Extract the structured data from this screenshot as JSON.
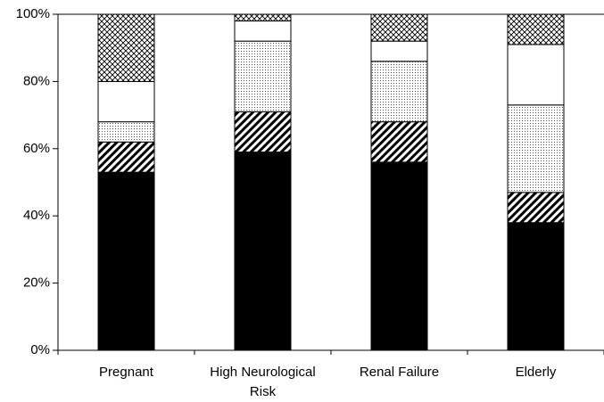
{
  "chart_data": {
    "type": "stacked_bar",
    "categories": [
      "Pregnant",
      "High Neurological Risk",
      "Renal Failure",
      "Elderly"
    ],
    "series": [
      {
        "color": "#000000",
        "pattern": "solid",
        "values": [
          53,
          59,
          56,
          38
        ]
      },
      {
        "color": "#000000",
        "pattern": "diagonal",
        "values": [
          9,
          12,
          12,
          9
        ]
      },
      {
        "color": "#000000",
        "pattern": "dots",
        "values": [
          6,
          21,
          18,
          26
        ]
      },
      {
        "color": "#000000",
        "pattern": "none",
        "values": [
          12,
          6,
          6,
          18
        ]
      },
      {
        "color": "#000000",
        "pattern": "crosshatch",
        "values": [
          20,
          2,
          8,
          9
        ]
      }
    ],
    "ylim": [
      0,
      100
    ],
    "yticks": [
      {
        "value": 0,
        "label": "0%"
      },
      {
        "value": 20,
        "label": "20%"
      },
      {
        "value": 40,
        "label": "40%"
      },
      {
        "value": 60,
        "label": "60%"
      },
      {
        "value": 80,
        "label": "80%"
      },
      {
        "value": 100,
        "label": "100%"
      }
    ]
  }
}
